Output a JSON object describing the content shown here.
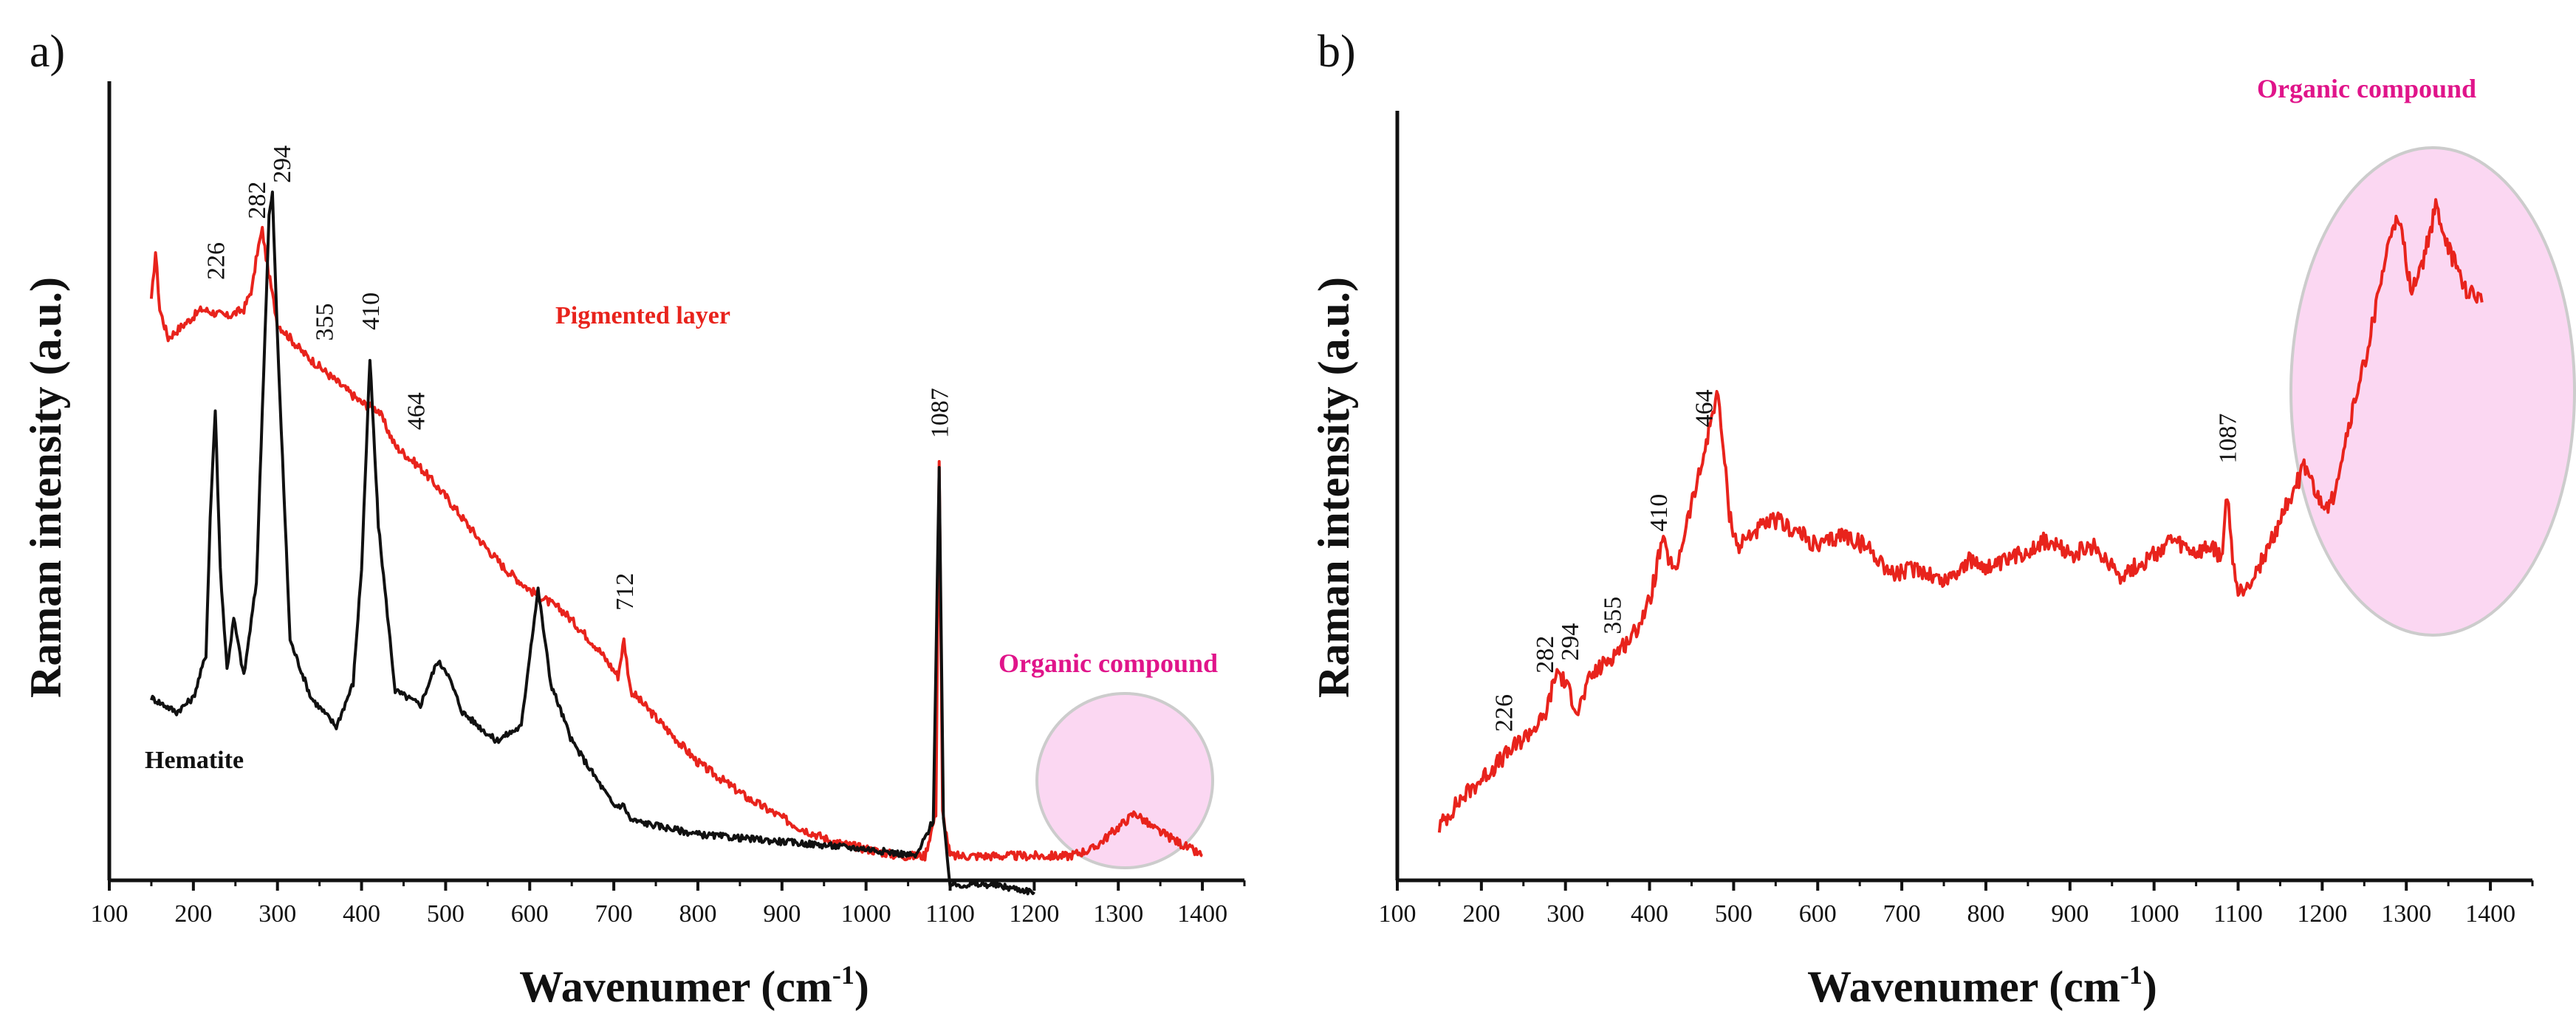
{
  "chart_data": [
    {
      "panel": "a)",
      "type": "line",
      "xlabel": "Wavenumer (cm",
      "xlabel_sup": "-1",
      "xlabel_close": ")",
      "ylabel": "Raman intensity (a.u.)",
      "xlim": [
        100,
        1450
      ],
      "ylim": [
        0,
        100
      ],
      "xticks": [
        "100",
        "200",
        "300",
        "400",
        "500",
        "600",
        "700",
        "800",
        "900",
        "1000",
        "1100",
        "1200",
        "1300",
        "1400"
      ],
      "yticks_shown": false,
      "grid": false,
      "series": [
        {
          "name": "Pigmented layer",
          "color": "#e8231c",
          "x": [
            150,
            155,
            160,
            170,
            190,
            210,
            240,
            260,
            270,
            276,
            282,
            288,
            300,
            330,
            360,
            400,
            420,
            440,
            470,
            500,
            540,
            570,
            600,
            640,
            680,
            705,
            712,
            720,
            760,
            800,
            860,
            920,
            960,
            1000,
            1040,
            1070,
            1083,
            1087,
            1091,
            1100,
            1150,
            1200,
            1240,
            1270,
            1300,
            1320,
            1340,
            1370,
            1400
          ],
          "y": [
            77,
            84,
            76,
            72,
            74,
            76,
            75,
            76,
            79,
            84,
            87,
            82,
            74,
            70,
            67,
            63,
            62,
            57,
            54,
            50,
            44,
            40,
            37,
            34,
            29,
            25,
            30,
            23,
            18,
            13,
            8,
            4,
            2,
            1,
            0,
            0,
            6,
            55,
            6,
            0,
            0,
            0,
            0,
            1,
            4,
            6,
            4,
            2,
            0
          ]
        },
        {
          "name": "Hematite",
          "color": "#111111",
          "x": [
            150,
            180,
            200,
            215,
            220,
            226,
            232,
            240,
            248,
            260,
            275,
            282,
            290,
            294,
            300,
            315,
            340,
            370,
            390,
            400,
            410,
            420,
            440,
            470,
            490,
            500,
            520,
            560,
            590,
            600,
            610,
            625,
            650,
            700,
            712,
            720,
            800,
            900,
            1000,
            1060,
            1080,
            1087,
            1092,
            1100,
            1150,
            1200
          ],
          "y": [
            22,
            20,
            22,
            28,
            47,
            62,
            40,
            26,
            33,
            25,
            38,
            62,
            89,
            92,
            72,
            30,
            22,
            18,
            24,
            40,
            69,
            46,
            23,
            21,
            27,
            26,
            20,
            16,
            18,
            28,
            37,
            24,
            16,
            7,
            7,
            5,
            3,
            2,
            1,
            0,
            5,
            54,
            5,
            -4,
            -4,
            -5
          ]
        }
      ],
      "peak_labels": [
        {
          "x": 226,
          "text": "226"
        },
        {
          "x": 282,
          "text": "282"
        },
        {
          "x": 294,
          "text": "294"
        },
        {
          "x": 355,
          "text": "355"
        },
        {
          "x": 410,
          "text": "410"
        },
        {
          "x": 464,
          "text": "464"
        },
        {
          "x": 712,
          "text": "712"
        },
        {
          "x": 1087,
          "text": "1087"
        }
      ],
      "annotations": [
        {
          "text": "Pigmented layer",
          "color": "#e8231c"
        },
        {
          "text": "Hematite",
          "color": "#111111"
        },
        {
          "text": "Organic compound",
          "color": "#e0148a"
        }
      ],
      "highlight": {
        "x_range": [
          1210,
          1410
        ],
        "color": "#f7c6ec"
      }
    },
    {
      "panel": "b)",
      "type": "line",
      "xlabel": "Wavenumer (cm",
      "xlabel_sup": "-1",
      "xlabel_close": ")",
      "ylabel": "Raman intensity (a.u.)",
      "xlim": [
        100,
        1450
      ],
      "ylim": [
        0,
        100
      ],
      "xticks": [
        "100",
        "200",
        "300",
        "400",
        "500",
        "600",
        "700",
        "800",
        "900",
        "1000",
        "1100",
        "1200",
        "1300",
        "1400"
      ],
      "yticks_shown": false,
      "grid": false,
      "series": [
        {
          "color": "#e8231c",
          "x": [
            150,
            175,
            200,
            225,
            250,
            275,
            290,
            300,
            315,
            330,
            355,
            380,
            400,
            415,
            430,
            445,
            460,
            472,
            480,
            485,
            495,
            505,
            520,
            550,
            580,
            600,
            630,
            660,
            690,
            720,
            750,
            780,
            810,
            840,
            870,
            900,
            930,
            960,
            990,
            1020,
            1050,
            1070,
            1080,
            1087,
            1092,
            1100,
            1120,
            1140,
            1160,
            1180,
            1195,
            1210,
            1230,
            1250,
            1270,
            1285,
            1295,
            1305,
            1320,
            1335,
            1350,
            1370,
            1390
          ],
          "y": [
            3,
            7,
            10,
            13,
            16,
            19,
            26,
            24,
            20,
            25,
            28,
            31,
            36,
            45,
            40,
            48,
            55,
            62,
            67,
            62,
            49,
            44,
            46,
            48,
            46,
            44,
            46,
            44,
            40,
            41,
            39,
            42,
            41,
            43,
            45,
            43,
            44,
            40,
            42,
            45,
            43,
            44,
            42,
            52,
            44,
            37,
            40,
            45,
            51,
            56,
            51,
            50,
            61,
            71,
            83,
            92,
            90,
            82,
            86,
            94,
            88,
            82,
            80
          ]
        }
      ],
      "peak_labels": [
        {
          "x": 226,
          "text": "226"
        },
        {
          "x": 282,
          "text": "282"
        },
        {
          "x": 294,
          "text": "294"
        },
        {
          "x": 355,
          "text": "355"
        },
        {
          "x": 410,
          "text": "410"
        },
        {
          "x": 464,
          "text": "464"
        },
        {
          "x": 1087,
          "text": "1087"
        }
      ],
      "annotations": [
        {
          "text": "Organic compound",
          "color": "#e0148a"
        }
      ],
      "highlight": {
        "x_range": [
          1130,
          1440
        ],
        "color": "#f7c6ec"
      }
    }
  ]
}
